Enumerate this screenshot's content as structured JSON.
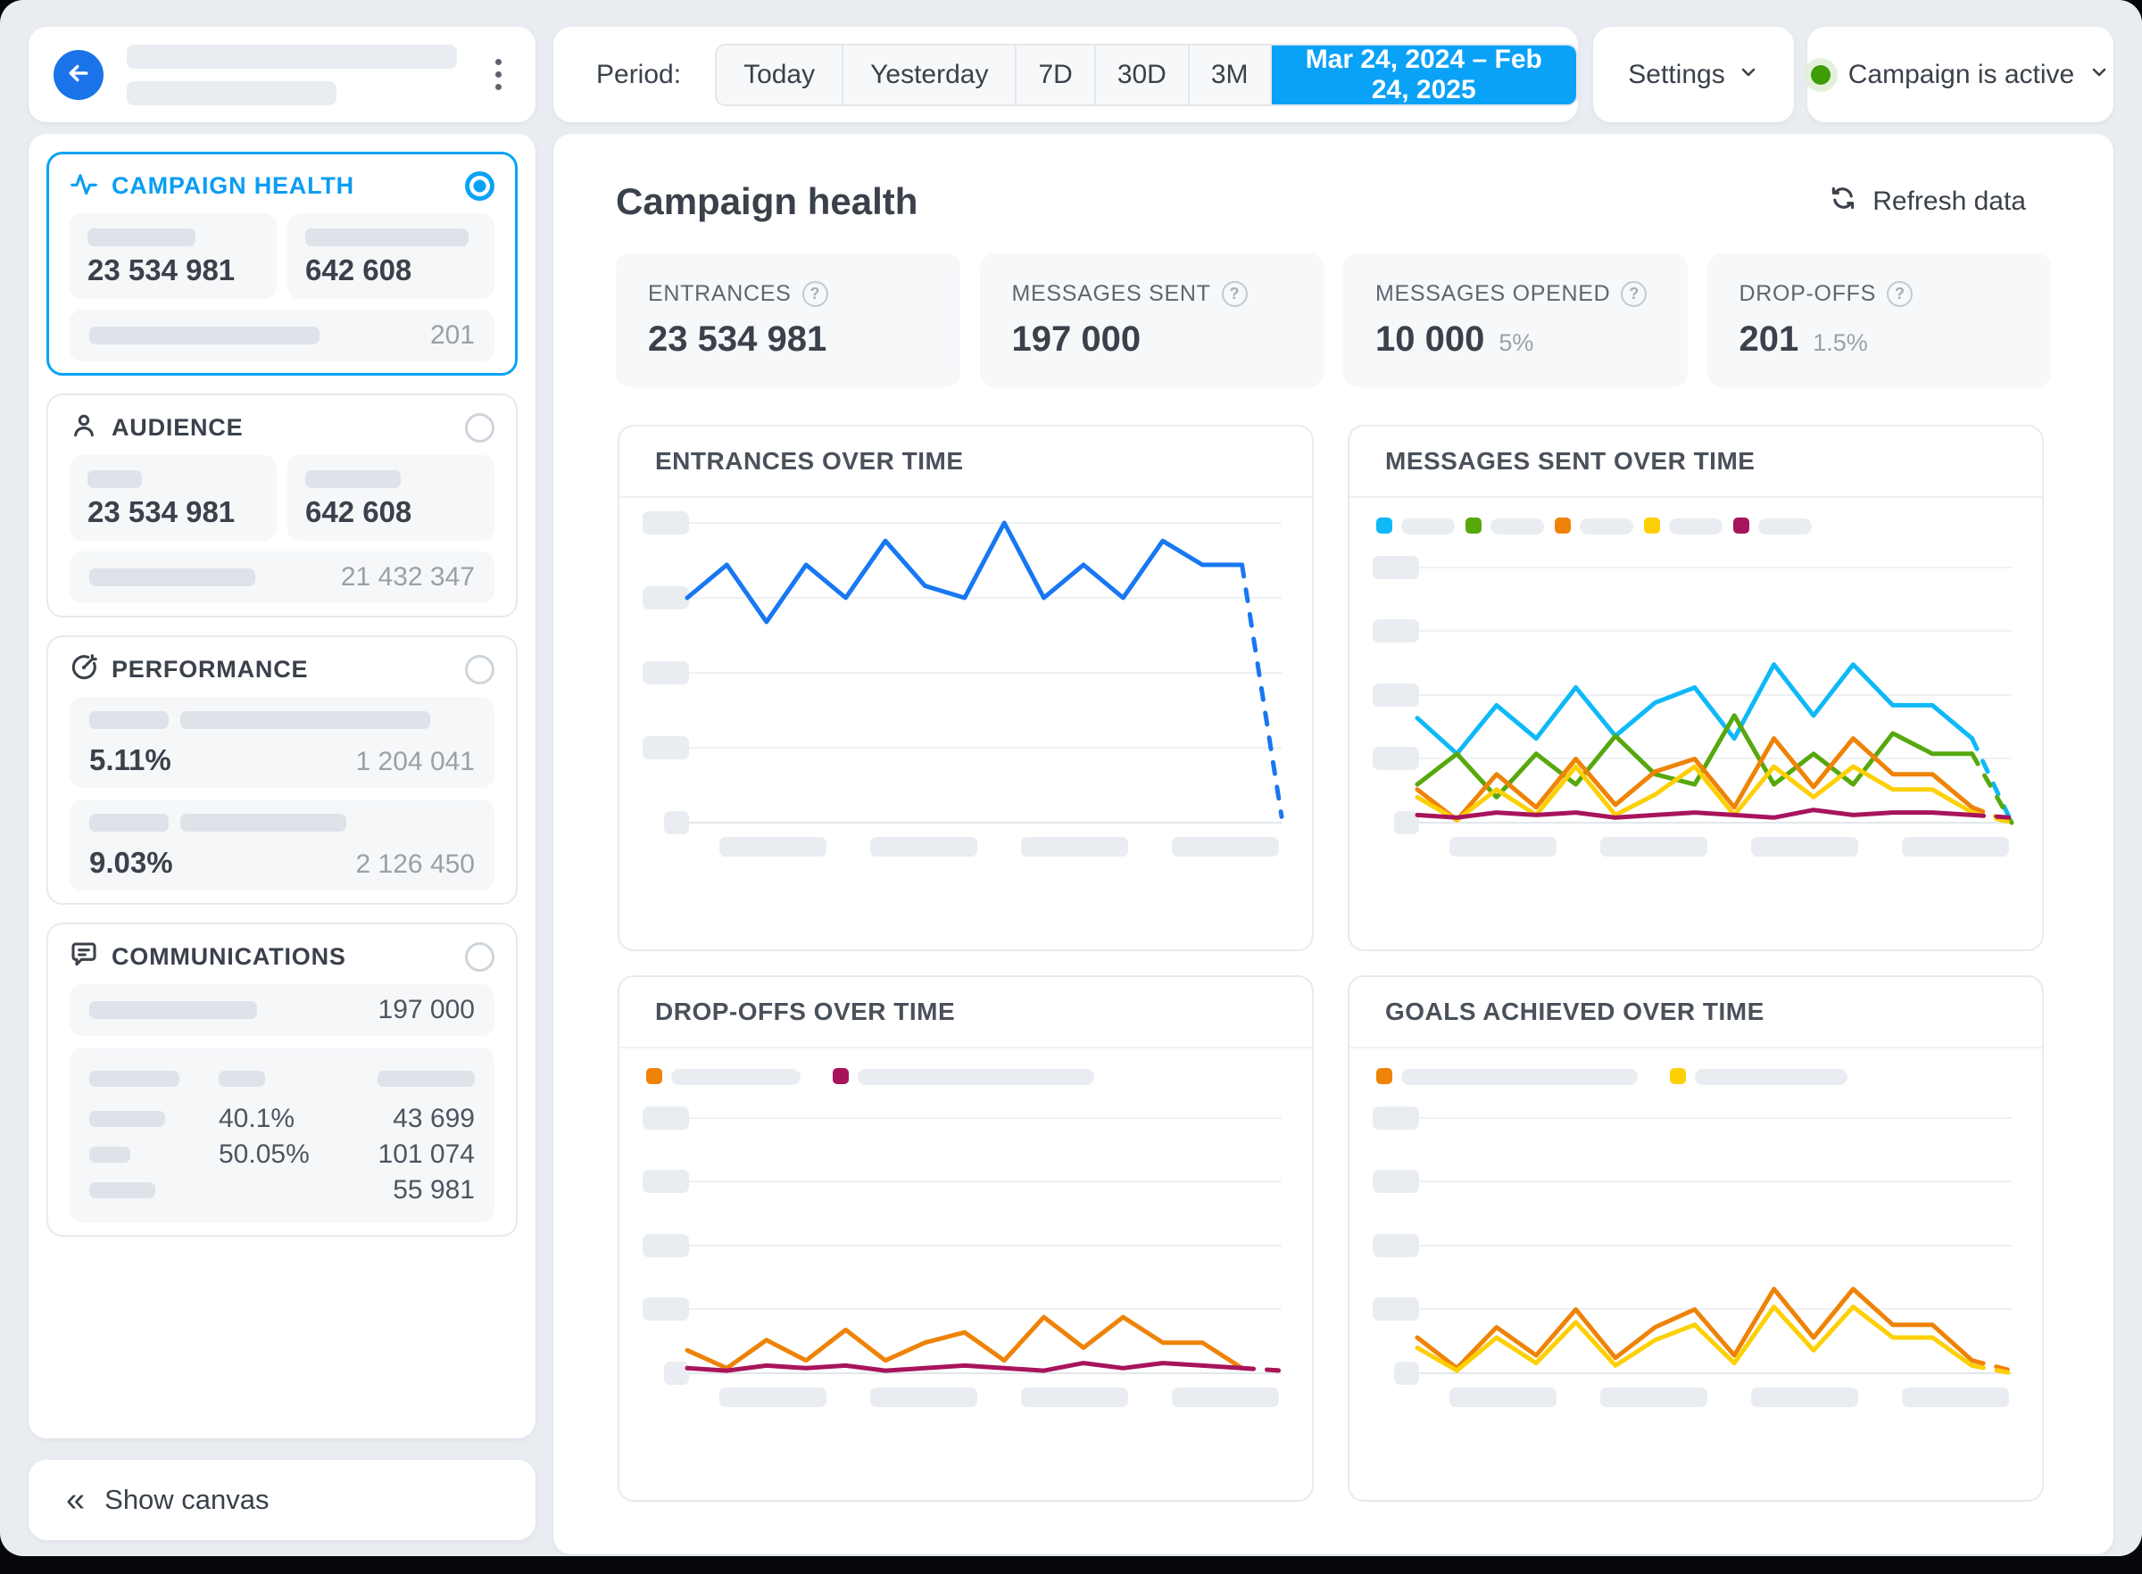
{
  "colors": {
    "accent_blue": "#0aa2f6",
    "back_button_blue": "#1a73e8",
    "status_green": "#3f9c06",
    "entrances_line": "#1877f2",
    "series_cyan": "#0fb9f7",
    "series_green": "#56a80d",
    "series_orange": "#ee8307",
    "series_yellow": "#fdd005",
    "series_maroon": "#a8145c"
  },
  "icons": {
    "help": "?",
    "collapse": "«"
  },
  "topbar": {
    "period_label": "Period:",
    "period_options": [
      "Today",
      "Yesterday",
      "7D",
      "30D",
      "3M"
    ],
    "period_selected_range": "Mar 24, 2024 – Feb 24, 2025",
    "settings_label": "Settings",
    "campaign_status": "Campaign is active"
  },
  "sidebar": {
    "campaign_health": {
      "title": "CAMPAIGN HEALTH",
      "stat1": "23 534 981",
      "stat2": "642 608",
      "row_value": "201"
    },
    "audience": {
      "title": "AUDIENCE",
      "stat1": "23 534 981",
      "stat2": "642 608",
      "row_value": "21 432 347"
    },
    "performance": {
      "title": "PERFORMANCE",
      "row1_pct": "5.11%",
      "row1_value": "1 204 041",
      "row2_pct": "9.03%",
      "row2_value": "2 126 450"
    },
    "communications": {
      "title": "COMMUNICATIONS",
      "row_value": "197 000",
      "table": [
        {
          "pct": "40.1%",
          "value": "43 699"
        },
        {
          "pct": "50.05%",
          "value": "101 074"
        },
        {
          "pct": "",
          "value": "55 981"
        }
      ]
    },
    "show_canvas": "Show canvas"
  },
  "main": {
    "title": "Campaign health",
    "refresh_label": "Refresh data",
    "kpis": [
      {
        "label": "ENTRANCES",
        "value": "23 534 981",
        "sub": ""
      },
      {
        "label": "MESSAGES SENT",
        "value": "197 000",
        "sub": ""
      },
      {
        "label": "MESSAGES OPENED",
        "value": "10 000",
        "sub": "5%"
      },
      {
        "label": "DROP-OFFS",
        "value": "201",
        "sub": "1.5%"
      }
    ]
  },
  "chart_data": [
    {
      "type": "line",
      "title": "ENTRANCES OVER TIME",
      "xlabel": "time (x tick labels are skeleton placeholders)",
      "ylabel": "entrances (y tick labels are skeleton placeholders)",
      "ylim": [
        0,
        100
      ],
      "grid": true,
      "series": [
        {
          "name": "entrances",
          "color": "#1877f2",
          "dash_from": 14,
          "values": [
            75,
            86,
            67,
            86,
            75,
            94,
            79,
            75,
            100,
            75,
            86,
            75,
            94,
            86,
            86,
            2
          ]
        }
      ]
    },
    {
      "type": "line",
      "title": "MESSAGES SENT OVER TIME",
      "xlabel": "time (x tick labels are skeleton placeholders)",
      "ylabel": "messages sent (y tick labels are skeleton placeholders)",
      "ylim": [
        0,
        100
      ],
      "grid": true,
      "legend_gap": 12,
      "legend": [
        {
          "color": "#0fb9f7",
          "pill_w": 60
        },
        {
          "color": "#56a80d",
          "pill_w": 60
        },
        {
          "color": "#ee8307",
          "pill_w": 60
        },
        {
          "color": "#fdd005",
          "pill_w": 60
        },
        {
          "color": "#a8145c",
          "pill_w": 60
        }
      ],
      "series": [
        {
          "name": "cyan",
          "color": "#0fb9f7",
          "dash_from": 14,
          "values": [
            41,
            27,
            46,
            33,
            53,
            34,
            47,
            53,
            33,
            62,
            42,
            62,
            46,
            46,
            33,
            0
          ]
        },
        {
          "name": "green",
          "color": "#56a80d",
          "dash_from": 14,
          "values": [
            15,
            27,
            10,
            27,
            15,
            34,
            19,
            15,
            42,
            15,
            27,
            15,
            35,
            27,
            27,
            0
          ]
        },
        {
          "name": "orange",
          "color": "#ee8307",
          "dash_from": 14,
          "values": [
            13,
            1,
            19,
            6,
            25,
            7,
            20,
            25,
            6,
            33,
            14,
            33,
            19,
            19,
            6,
            0
          ]
        },
        {
          "name": "yellow",
          "color": "#fdd005",
          "dash_from": 14,
          "values": [
            10,
            1,
            13,
            3,
            22,
            3,
            11,
            22,
            3,
            22,
            10,
            22,
            13,
            13,
            4,
            0
          ]
        },
        {
          "name": "maroon",
          "color": "#a8145c",
          "dash_from": 14,
          "values": [
            3,
            2,
            4,
            3,
            4,
            2,
            3,
            4,
            3,
            2,
            5,
            3,
            4,
            4,
            3,
            2
          ]
        }
      ]
    },
    {
      "type": "line",
      "title": "DROP-OFFS OVER TIME",
      "xlabel": "time (x tick labels are skeleton placeholders)",
      "ylabel": "drop-offs (y tick labels are skeleton placeholders)",
      "ylim": [
        0,
        100
      ],
      "grid": true,
      "legend_gap": 36,
      "legend": [
        {
          "color": "#ee8307",
          "pill_w": 145
        },
        {
          "color": "#a8145c",
          "pill_w": 265
        }
      ],
      "series": [
        {
          "name": "orange",
          "color": "#ee8307",
          "dash_from": 14,
          "values": [
            9,
            2,
            13,
            5,
            17,
            5,
            12,
            16,
            5,
            22,
            10,
            22,
            12,
            12,
            2,
            1
          ]
        },
        {
          "name": "maroon",
          "color": "#a8145c",
          "dash_from": 14,
          "values": [
            2,
            1,
            3,
            2,
            3,
            1,
            2,
            3,
            2,
            1,
            4,
            2,
            4,
            3,
            2,
            1
          ]
        }
      ]
    },
    {
      "type": "line",
      "title": "GOALS ACHIEVED OVER TIME",
      "xlabel": "time (x tick labels are skeleton placeholders)",
      "ylabel": "goals achieved (y tick labels are skeleton placeholders)",
      "ylim": [
        0,
        100
      ],
      "grid": true,
      "legend_gap": 36,
      "legend": [
        {
          "color": "#ee8307",
          "pill_w": 265
        },
        {
          "color": "#fdd005",
          "pill_w": 171
        }
      ],
      "series": [
        {
          "name": "orange",
          "color": "#ee8307",
          "dash_from": 14,
          "values": [
            14,
            2,
            18,
            7,
            25,
            6,
            18,
            25,
            7,
            33,
            14,
            33,
            19,
            19,
            5,
            1
          ]
        },
        {
          "name": "yellow",
          "color": "#fdd005",
          "dash_from": 14,
          "values": [
            10,
            1,
            14,
            4,
            20,
            3,
            13,
            19,
            4,
            26,
            9,
            26,
            14,
            14,
            3,
            0
          ]
        }
      ]
    }
  ]
}
